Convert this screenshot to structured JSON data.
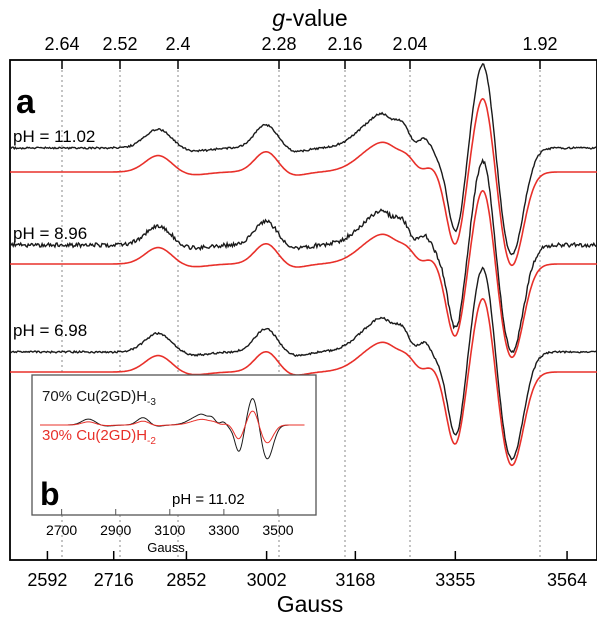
{
  "chart_data": [
    {
      "type": "line",
      "panel_label": "a",
      "title": "",
      "xlabel": "Gauss",
      "top_axis_label_italic": "g",
      "top_axis_label_rest": "-value",
      "bottom_ticks": [
        2592,
        2716,
        2852,
        3002,
        3168,
        3355,
        3564
      ],
      "top_ticks": [
        "2.64",
        "2.52",
        "2.4",
        "2.28",
        "2.16",
        "2.04",
        "1.92"
      ],
      "xlim": [
        2522,
        3620
      ],
      "grid": "vertical dotted lines at top-axis ticks",
      "series": [
        {
          "label": "pH = 11.02",
          "experimental_color": "#1a1a1a",
          "simulated_color": "#e8302a"
        },
        {
          "label": "pH = 8.96",
          "experimental_color": "#1a1a1a",
          "simulated_color": "#e8302a"
        },
        {
          "label": "pH = 6.98",
          "experimental_color": "#1a1a1a",
          "simulated_color": "#e8302a"
        }
      ],
      "features_gauss": {
        "parallel_peak_1": 2800,
        "parallel_peak_2": 3002,
        "perpendicular_min": 3355,
        "perpendicular_max": 3408,
        "derivative_min": 3460
      }
    },
    {
      "type": "line",
      "panel_label": "b",
      "xlabel": "Gauss",
      "xticks": [
        2700,
        2900,
        3100,
        3300,
        3500
      ],
      "legend": [
        {
          "text": "70% Cu(2GD)H",
          "sub": "-3",
          "color": "#1a1a1a"
        },
        {
          "text": "30% Cu(2GD)H",
          "sub": "-2",
          "color": "#e8302a"
        }
      ],
      "annotation": "pH = 11.02"
    }
  ]
}
